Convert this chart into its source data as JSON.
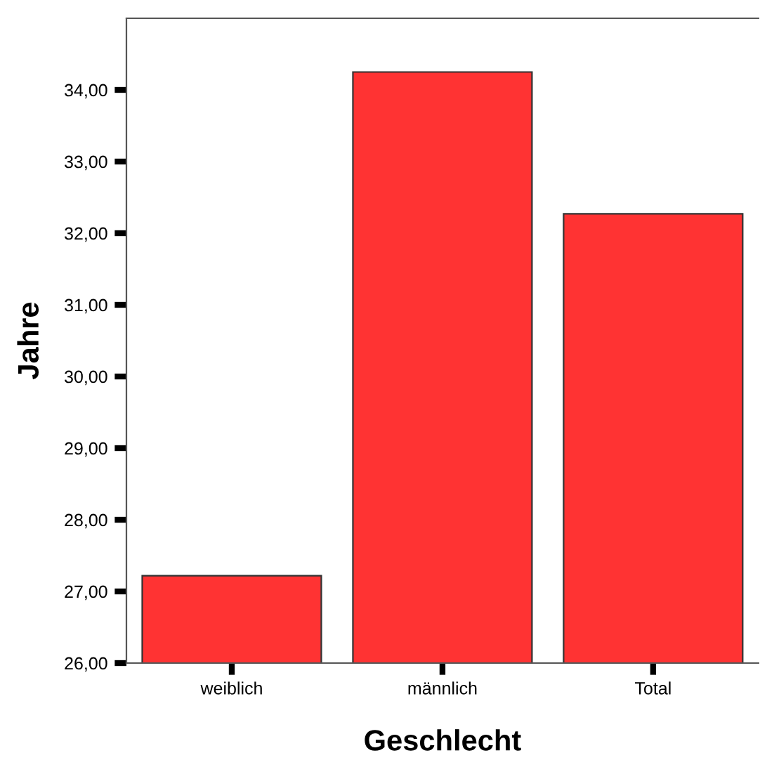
{
  "chart_data": {
    "type": "bar",
    "xlabel": "Geschlecht",
    "ylabel": "Jahre",
    "categories": [
      "weiblich",
      "männlich",
      "Total"
    ],
    "values": [
      27.22,
      34.25,
      32.27
    ],
    "color": "#ff3333",
    "ylim": [
      26,
      35
    ],
    "yticks": [
      {
        "value": 26,
        "label": "26,00"
      },
      {
        "value": 27,
        "label": "27,00"
      },
      {
        "value": 28,
        "label": "28,00"
      },
      {
        "value": 29,
        "label": "29,00"
      },
      {
        "value": 30,
        "label": "30,00"
      },
      {
        "value": 31,
        "label": "31,00"
      },
      {
        "value": 32,
        "label": "32,00"
      },
      {
        "value": 33,
        "label": "33,00"
      },
      {
        "value": 34,
        "label": "34,00"
      }
    ],
    "grid": false
  }
}
